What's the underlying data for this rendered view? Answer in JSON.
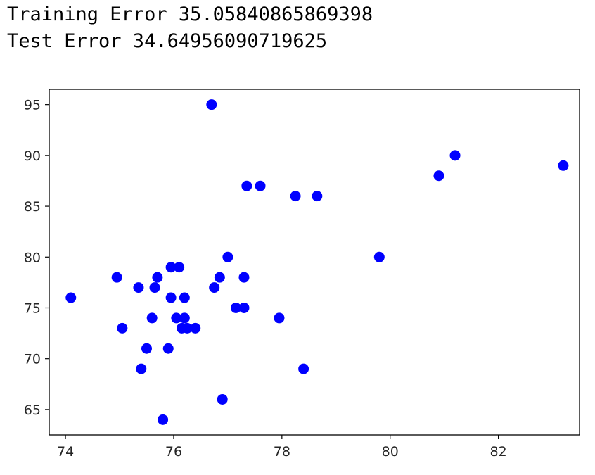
{
  "output": {
    "training_error": "Training Error 35.05840865869398",
    "test_error": "Test Error 34.64956090719625"
  },
  "chart_data": {
    "type": "scatter",
    "title": "",
    "xlabel": "",
    "ylabel": "",
    "xlim": [
      73.7,
      83.5
    ],
    "ylim": [
      62.5,
      96.5
    ],
    "xticks": [
      74,
      76,
      78,
      80,
      82
    ],
    "yticks": [
      65,
      70,
      75,
      80,
      85,
      90,
      95
    ],
    "xtick_labels": [
      "74",
      "76",
      "78",
      "80",
      "82"
    ],
    "ytick_labels": [
      "65",
      "70",
      "75",
      "80",
      "85",
      "90",
      "95"
    ],
    "grid": false,
    "marker_color": "#0000ff",
    "points": [
      {
        "x": 74.1,
        "y": 76
      },
      {
        "x": 74.95,
        "y": 78
      },
      {
        "x": 75.05,
        "y": 73
      },
      {
        "x": 75.35,
        "y": 77
      },
      {
        "x": 75.4,
        "y": 69
      },
      {
        "x": 75.5,
        "y": 71
      },
      {
        "x": 75.6,
        "y": 74
      },
      {
        "x": 75.65,
        "y": 77
      },
      {
        "x": 75.7,
        "y": 78
      },
      {
        "x": 75.8,
        "y": 64
      },
      {
        "x": 75.9,
        "y": 71
      },
      {
        "x": 75.95,
        "y": 76
      },
      {
        "x": 75.95,
        "y": 79
      },
      {
        "x": 76.05,
        "y": 74
      },
      {
        "x": 76.1,
        "y": 79
      },
      {
        "x": 76.15,
        "y": 73
      },
      {
        "x": 76.2,
        "y": 76
      },
      {
        "x": 76.2,
        "y": 74
      },
      {
        "x": 76.25,
        "y": 73
      },
      {
        "x": 76.4,
        "y": 73
      },
      {
        "x": 76.7,
        "y": 95
      },
      {
        "x": 76.75,
        "y": 77
      },
      {
        "x": 76.85,
        "y": 78
      },
      {
        "x": 76.9,
        "y": 66
      },
      {
        "x": 77.0,
        "y": 80
      },
      {
        "x": 77.15,
        "y": 75
      },
      {
        "x": 77.3,
        "y": 78
      },
      {
        "x": 77.3,
        "y": 75
      },
      {
        "x": 77.35,
        "y": 87
      },
      {
        "x": 77.6,
        "y": 87
      },
      {
        "x": 77.95,
        "y": 74
      },
      {
        "x": 78.25,
        "y": 86
      },
      {
        "x": 78.4,
        "y": 69
      },
      {
        "x": 78.65,
        "y": 86
      },
      {
        "x": 79.8,
        "y": 80
      },
      {
        "x": 80.9,
        "y": 88
      },
      {
        "x": 81.2,
        "y": 90
      },
      {
        "x": 83.2,
        "y": 89
      }
    ]
  }
}
